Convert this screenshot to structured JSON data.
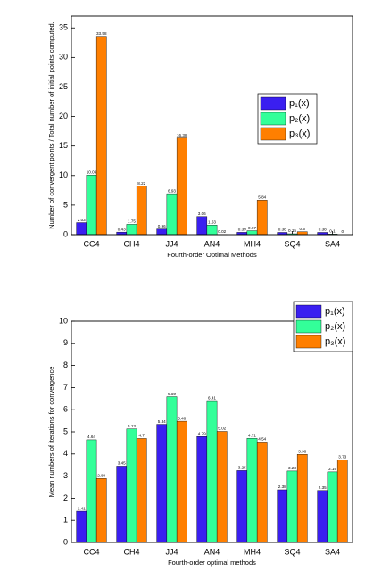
{
  "chart_data": [
    {
      "type": "bar",
      "x_label": "Fourth-order Optimal Methods",
      "y_label": "Number of convergent points / Total number of initial points computed.",
      "categories": [
        "CC4",
        "CH4",
        "JJ4",
        "AN4",
        "MH4",
        "SQ4",
        "SA4"
      ],
      "series": [
        {
          "name": "p₁(x)",
          "color": "#3a1ff0",
          "values": [
            2.03,
            0.43,
            0.96,
            3.06,
            0.39,
            0.38,
            0.38
          ]
        },
        {
          "name": "p₂(x)",
          "color": "#33ff99",
          "values": [
            10.09,
            1.75,
            6.93,
            1.63,
            0.67,
            0.15,
            0.1
          ]
        },
        {
          "name": "p₃(x)",
          "color": "#ff7f00",
          "values": [
            33.58,
            8.22,
            16.38,
            0.02,
            5.84,
            0.5,
            0
          ]
        }
      ],
      "ylim": [
        0,
        37
      ],
      "yticks": [
        0,
        5,
        10,
        15,
        20,
        25,
        30,
        35
      ],
      "legend": "center right"
    },
    {
      "type": "bar",
      "x_label": "Fourth-order optimal methods",
      "y_label": "Mean numbers of iterations for convergence",
      "categories": [
        "CC4",
        "CH4",
        "JJ4",
        "AN4",
        "MH4",
        "SQ4",
        "SA4"
      ],
      "series": [
        {
          "name": "p₁(x)",
          "color": "#3a1ff0",
          "values": [
            1.41,
            3.45,
            5.34,
            4.79,
            3.25,
            2.38,
            2.35
          ]
        },
        {
          "name": "p₂(x)",
          "color": "#33ff99",
          "values": [
            4.64,
            5.13,
            6.59,
            6.41,
            4.71,
            3.23,
            3.19
          ]
        },
        {
          "name": "p₃(x)",
          "color": "#ff7f00",
          "values": [
            2.89,
            4.7,
            5.48,
            5.02,
            4.54,
            3.98,
            3.73
          ]
        }
      ],
      "ylim": [
        0,
        10
      ],
      "yticks": [
        0,
        1,
        2,
        3,
        4,
        5,
        6,
        7,
        8,
        9,
        10
      ],
      "legend": "upper right"
    }
  ]
}
